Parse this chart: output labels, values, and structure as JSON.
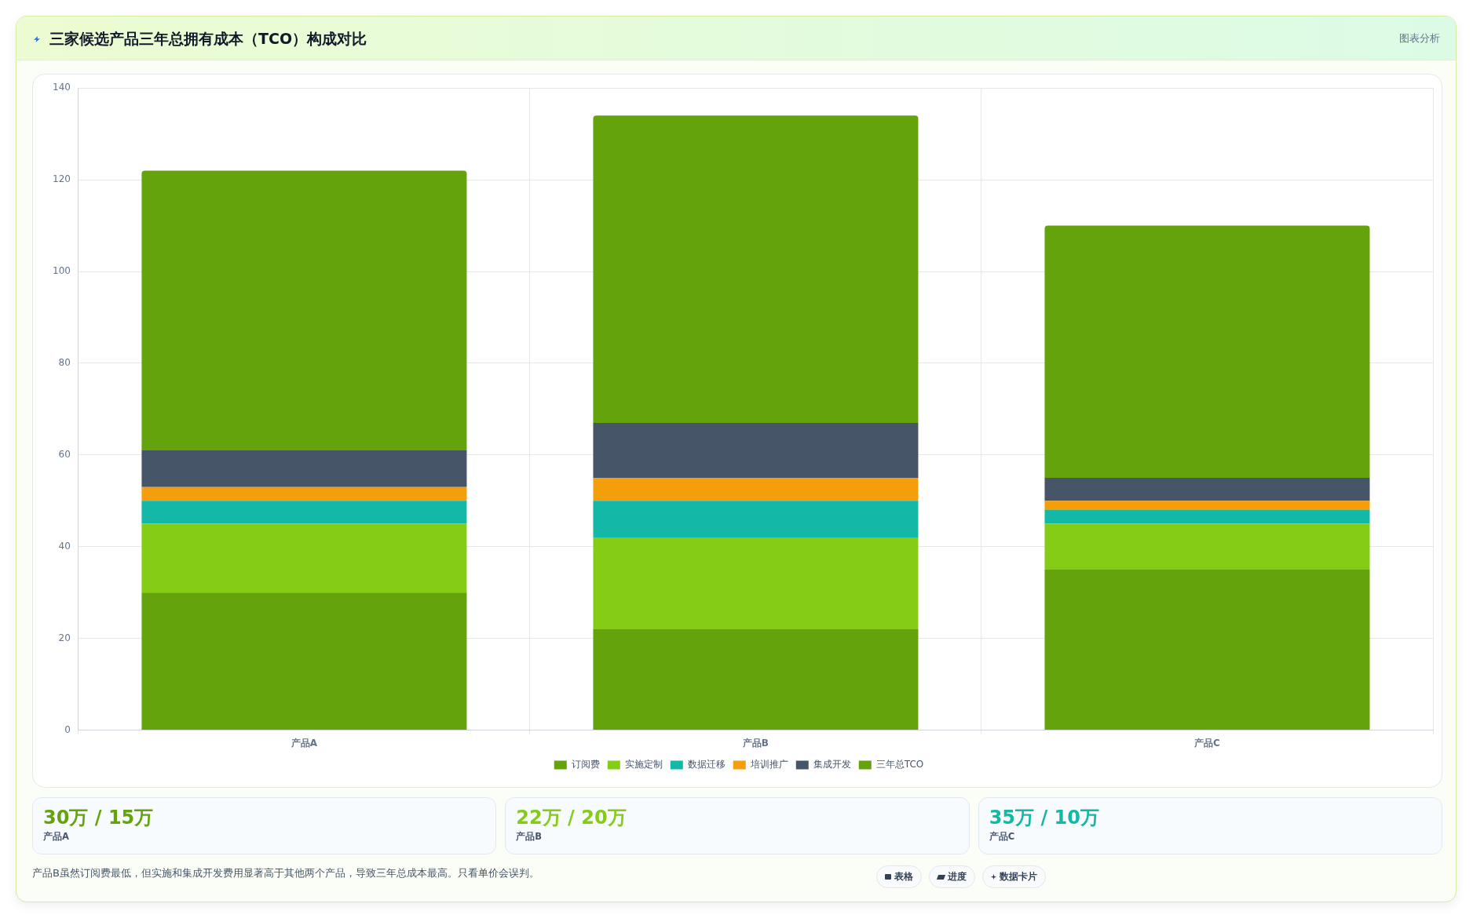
{
  "chart_data": {
    "type": "bar",
    "title": "三家候选产品三年总拥有成本（TCO）构成对比",
    "categories": [
      "产品A",
      "产品B",
      "产品C"
    ],
    "stacked": true,
    "series": [
      {
        "name": "订阅费",
        "color": "#65a30d",
        "values": [
          30,
          22,
          35
        ]
      },
      {
        "name": "实施定制",
        "color": "#84cc16",
        "values": [
          15,
          20,
          10
        ]
      },
      {
        "name": "数据迁移",
        "color": "#14b8a6",
        "values": [
          5,
          8,
          3
        ]
      },
      {
        "name": "培训推广",
        "color": "#f59e0b",
        "values": [
          3,
          5,
          2
        ]
      },
      {
        "name": "集成开发",
        "color": "#475569",
        "values": [
          8,
          12,
          5
        ]
      },
      {
        "name": "三年总TCO",
        "color": "#65a30d",
        "values": [
          61,
          67,
          55
        ]
      }
    ],
    "ylim": [
      0,
      140
    ],
    "yticks": [
      0,
      20,
      40,
      60,
      80,
      100,
      120,
      140
    ],
    "grid": true,
    "legend": "bottom",
    "annotations": [
      "图表分析",
      "30万 / 15万",
      "22万 / 20万",
      "35万 / 10万",
      "产品B虽然订阅费最低，但实施和集成开发费用显著高于其他两个产品，导致三年总成本最高。只看单价会误判。",
      "表格",
      "进度",
      "数据卡片"
    ]
  }
}
